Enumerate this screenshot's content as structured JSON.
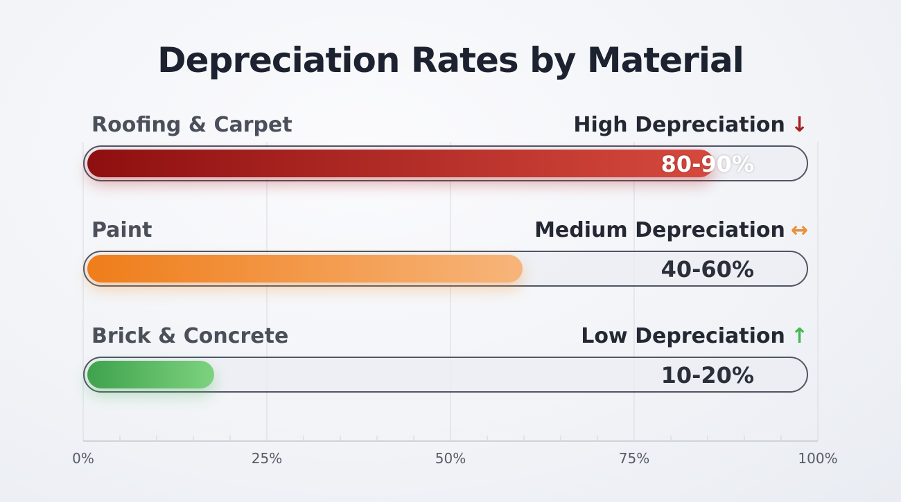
{
  "chart_data": {
    "type": "bar",
    "orientation": "horizontal",
    "title": "Depreciation Rates by Material",
    "categories": [
      "Roofing & Carpet",
      "Paint",
      "Brick & Concrete"
    ],
    "values": [
      86,
      60,
      18
    ],
    "value_labels": [
      "80-90%",
      "40-60%",
      "10-20%"
    ],
    "levels": [
      "High Depreciation",
      "Medium Depreciation",
      "Low Depreciation"
    ],
    "level_icons": [
      "arrow-down-icon",
      "arrow-left-right-icon",
      "arrow-up-icon"
    ],
    "level_glyphs": [
      "↓",
      "↔",
      "↑"
    ],
    "colors": [
      "#b3221f",
      "#f08a24",
      "#4cb85a"
    ],
    "gradients": [
      [
        "#8e0f10",
        "#d64a3e"
      ],
      [
        "#ef7d1a",
        "#f7b57a"
      ],
      [
        "#3fa24c",
        "#7dd27f"
      ]
    ],
    "xlim": [
      0,
      100
    ],
    "xticks": [
      "0%",
      "25%",
      "50%",
      "75%",
      "100%"
    ],
    "xtick_values": [
      0,
      25,
      50,
      75,
      100
    ],
    "minor_tick_step": 5,
    "grid": true
  }
}
